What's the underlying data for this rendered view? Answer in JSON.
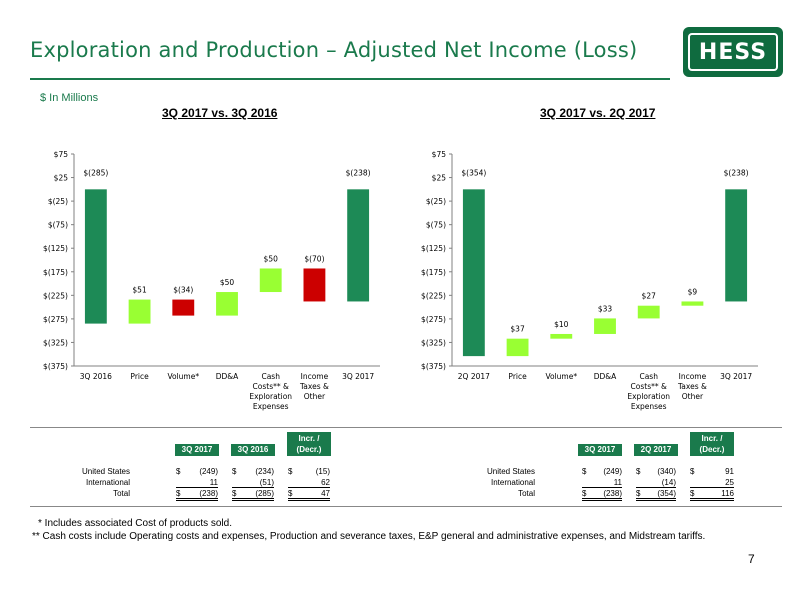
{
  "header": {
    "title": "Exploration and Production – Adjusted Net Income (Loss)",
    "logo_text": "HESS",
    "units": "$ In Millions"
  },
  "colors": {
    "brand_green": "#1a7a4c",
    "bar_green": "#1d8a56",
    "increase": "#99ff33",
    "decrease": "#cc0000"
  },
  "chart_data": [
    {
      "type": "bar",
      "subtype": "waterfall",
      "title": "3Q 2017 vs. 3Q 2016",
      "categories": [
        "3Q 2016",
        "Price",
        "Volume*",
        "DD&A",
        "Cash Costs** & Exploration Expenses",
        "Income Taxes & Other",
        "3Q 2017"
      ],
      "category_lines": [
        [
          "3Q 2016"
        ],
        [
          "Price"
        ],
        [
          "Volume*"
        ],
        [
          "DD&A"
        ],
        [
          "Cash",
          "Costs** &",
          "Exploration",
          "Expenses"
        ],
        [
          "Income",
          "Taxes &",
          "Other"
        ],
        [
          "3Q 2017"
        ]
      ],
      "values": [
        -285,
        51,
        -34,
        50,
        50,
        -70,
        -238
      ],
      "kinds": [
        "total",
        "delta",
        "delta",
        "delta",
        "delta",
        "delta",
        "total"
      ],
      "data_labels": [
        "$(285)",
        "$51",
        "$(34)",
        "$50",
        "$50",
        "$(70)",
        "$(238)"
      ],
      "ylim": [
        -375,
        75
      ],
      "yticks": [
        75,
        25,
        -25,
        -75,
        -125,
        -175,
        -225,
        -275,
        -325,
        -375
      ],
      "ytick_labels": [
        "$75",
        "$25",
        "$(25)",
        "$(75)",
        "$(125)",
        "$(175)",
        "$(225)",
        "$(275)",
        "$(325)",
        "$(375)"
      ],
      "grid": false
    },
    {
      "type": "bar",
      "subtype": "waterfall",
      "title": "3Q 2017 vs. 2Q 2017",
      "categories": [
        "2Q 2017",
        "Price",
        "Volume*",
        "DD&A",
        "Cash Costs** & Exploration Expenses",
        "Income Taxes & Other",
        "3Q 2017"
      ],
      "category_lines": [
        [
          "2Q 2017"
        ],
        [
          "Price"
        ],
        [
          "Volume*"
        ],
        [
          "DD&A"
        ],
        [
          "Cash",
          "Costs** &",
          "Exploration",
          "Expenses"
        ],
        [
          "Income",
          "Taxes &",
          "Other"
        ],
        [
          "3Q 2017"
        ]
      ],
      "values": [
        -354,
        37,
        10,
        33,
        27,
        9,
        -238
      ],
      "kinds": [
        "total",
        "delta",
        "delta",
        "delta",
        "delta",
        "delta",
        "total"
      ],
      "data_labels": [
        "$(354)",
        "$37",
        "$10",
        "$33",
        "$27",
        "$9",
        "$(238)"
      ],
      "ylim": [
        -375,
        75
      ],
      "yticks": [
        75,
        25,
        -25,
        -75,
        -125,
        -175,
        -225,
        -275,
        -325,
        -375
      ],
      "ytick_labels": [
        "$75",
        "$25",
        "$(25)",
        "$(75)",
        "$(125)",
        "$(175)",
        "$(225)",
        "$(275)",
        "$(325)",
        "$(375)"
      ],
      "grid": false
    }
  ],
  "table_left": {
    "headers": [
      "3Q 2017",
      "3Q 2016",
      "Incr. / (Decr.)"
    ],
    "rows": [
      {
        "label": "United States",
        "c1": "(249)",
        "c2": "(234)",
        "c3": "(15)"
      },
      {
        "label": "International",
        "c1": "11",
        "c2": "(51)",
        "c3": "62"
      },
      {
        "label": "Total",
        "c1": "(238)",
        "c2": "(285)",
        "c3": "47"
      }
    ],
    "currency": "$"
  },
  "table_right": {
    "headers": [
      "3Q 2017",
      "2Q 2017",
      "Incr. / (Decr.)"
    ],
    "rows": [
      {
        "label": "United States",
        "c1": "(249)",
        "c2": "(340)",
        "c3": "91"
      },
      {
        "label": "International",
        "c1": "11",
        "c2": "(14)",
        "c3": "25"
      },
      {
        "label": "Total",
        "c1": "(238)",
        "c2": "(354)",
        "c3": "116"
      }
    ],
    "currency": "$"
  },
  "footnotes": {
    "note1": "* Includes associated Cost of products sold.",
    "note2": "** Cash costs include Operating costs and expenses, Production and severance taxes, E&P general and administrative expenses, and Midstream tariffs."
  },
  "page_number": "7"
}
